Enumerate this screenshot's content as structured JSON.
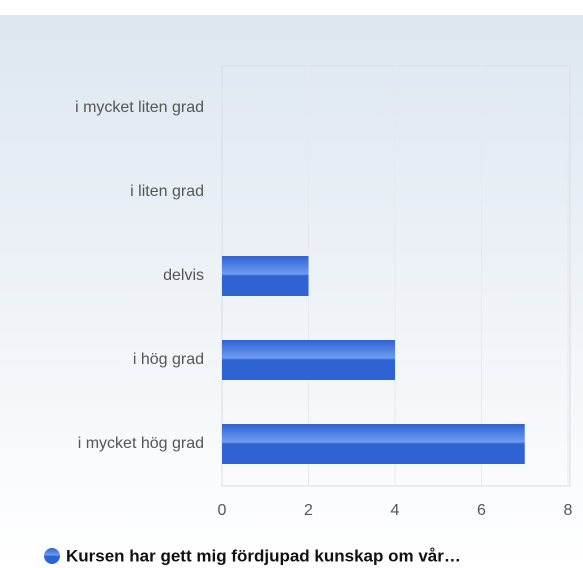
{
  "chart_data": {
    "type": "bar",
    "orientation": "horizontal",
    "categories": [
      "i mycket liten grad",
      "i liten grad",
      "delvis",
      "i hög grad",
      "i mycket hög grad"
    ],
    "series": [
      {
        "name": "Kursen har gett mig fördjupad kunskap om vår…",
        "color": "#2f62d3",
        "values": [
          0,
          0,
          2,
          4,
          7
        ]
      }
    ],
    "xlim": [
      0,
      8
    ],
    "xticks": [
      0,
      2,
      4,
      6,
      8
    ],
    "grid": true,
    "legend": "bottom"
  }
}
